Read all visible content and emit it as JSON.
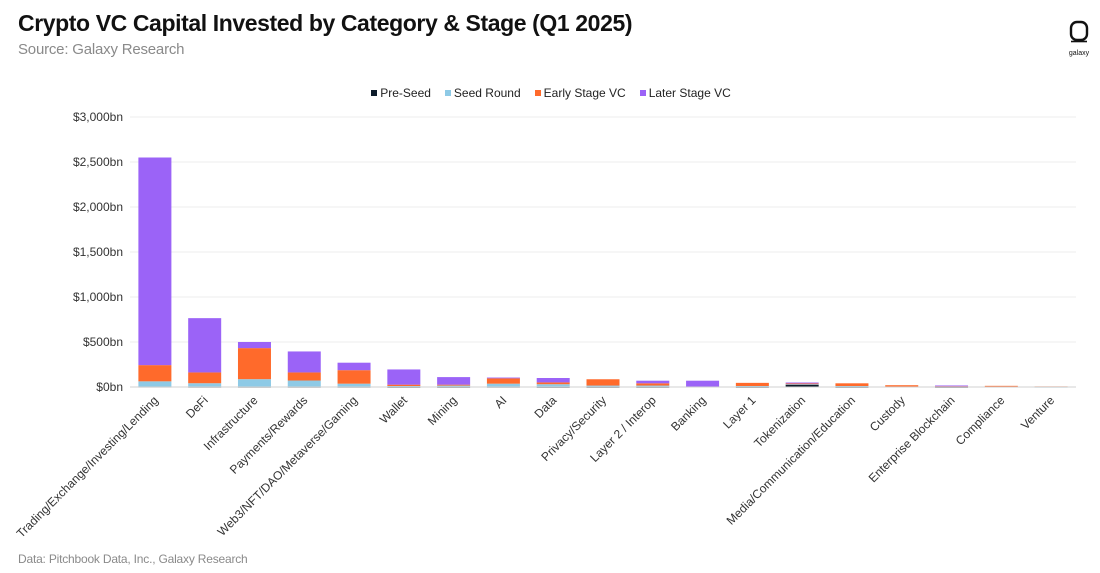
{
  "header": {
    "title": "Crypto VC Capital Invested by Category & Stage (Q1 2025)",
    "subtitle": "Source: Galaxy Research"
  },
  "logo": {
    "text": "galaxy",
    "icon": "galaxy-logo-icon"
  },
  "footer": {
    "text": "Data: Pitchbook Data, Inc., Galaxy Research"
  },
  "chart_data": {
    "type": "bar",
    "stacked": true,
    "categories": [
      "Trading/Exchange/Investing/Lending",
      "DeFi",
      "Infrastructure",
      "Payments/Rewards",
      "Web3/NFT/DAO/Metaverse/Gaming",
      "Wallet",
      "Mining",
      "AI",
      "Data",
      "Privacy/Security",
      "Layer 2 / Interop",
      "Banking",
      "Layer 1",
      "Tokenization",
      "Media/Communication/Education",
      "Custody",
      "Enterprise Blockchain",
      "Compliance",
      "Venture"
    ],
    "series": [
      {
        "name": "Pre-Seed",
        "color": "#0d1b2a",
        "values": [
          3,
          2,
          2,
          2,
          2,
          1,
          1,
          2,
          1,
          1,
          1,
          0,
          1,
          25,
          1,
          0,
          1,
          0,
          0
        ]
      },
      {
        "name": "Seed Round",
        "color": "#8ecae6",
        "values": [
          60,
          40,
          85,
          70,
          35,
          10,
          15,
          35,
          30,
          15,
          15,
          5,
          10,
          10,
          10,
          5,
          5,
          3,
          2
        ]
      },
      {
        "name": "Early Stage VC",
        "color": "#ff6a2b",
        "values": [
          180,
          120,
          345,
          90,
          150,
          15,
          10,
          60,
          20,
          70,
          25,
          0,
          35,
          5,
          30,
          15,
          5,
          10,
          5
        ]
      },
      {
        "name": "Later Stage VC",
        "color": "#9b63f7",
        "values": [
          2307,
          603,
          68,
          233,
          83,
          169,
          84,
          8,
          49,
          0,
          29,
          65,
          0,
          10,
          0,
          0,
          6,
          0,
          0
        ]
      }
    ],
    "y_ticks": [
      "$0bn",
      "$500bn",
      "$1,000bn",
      "$1,500bn",
      "$2,000bn",
      "$2,500bn",
      "$3,000bn"
    ],
    "ylim": [
      0,
      3000
    ],
    "legend_position": "top-center",
    "grid": true
  }
}
